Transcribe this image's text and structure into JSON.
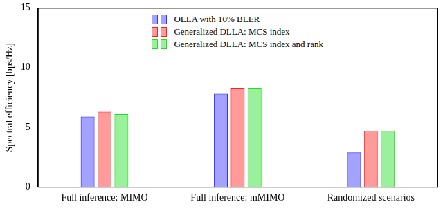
{
  "chart_data": {
    "type": "bar",
    "categories": [
      "Full inference: MIMO",
      "Full inference: mMIMO",
      "Randomized scenarios"
    ],
    "y_label": "Spectral efficiency [bps/Hz]",
    "ylim": [
      0,
      15
    ],
    "yticks": [
      0,
      5,
      10,
      15
    ],
    "grid": false,
    "legend": "top",
    "series": [
      {
        "name": "OLLA with 10% BLER",
        "color": "#3333ff",
        "values": [
          5.9,
          7.8,
          2.9
        ]
      },
      {
        "name": "Generalized DLLA: MCS index",
        "color": "#ff2222",
        "values": [
          6.3,
          8.3,
          4.7
        ]
      },
      {
        "name": "Generalized DLLA: MCS index and rank",
        "color": "#22dd22",
        "values": [
          6.1,
          8.3,
          4.7
        ]
      }
    ]
  }
}
